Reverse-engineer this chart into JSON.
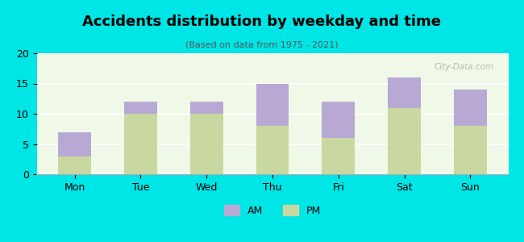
{
  "categories": [
    "Mon",
    "Tue",
    "Wed",
    "Thu",
    "Fri",
    "Sat",
    "Sun"
  ],
  "pm_values": [
    3,
    10,
    10,
    8,
    6,
    11,
    8
  ],
  "am_values": [
    4,
    2,
    2,
    7,
    6,
    5,
    6
  ],
  "am_color": "#b8a9d4",
  "pm_color": "#c8d8a0",
  "title": "Accidents distribution by weekday and time",
  "subtitle": "(Based on data from 1975 - 2021)",
  "ylim": [
    0,
    20
  ],
  "yticks": [
    0,
    5,
    10,
    15,
    20
  ],
  "background_color": "#00e5e5",
  "plot_bg_start": "#f0f8e8",
  "plot_bg_end": "#ffffff",
  "bar_width": 0.5,
  "legend_am": "AM",
  "legend_pm": "PM",
  "watermark": "City-Data.com"
}
